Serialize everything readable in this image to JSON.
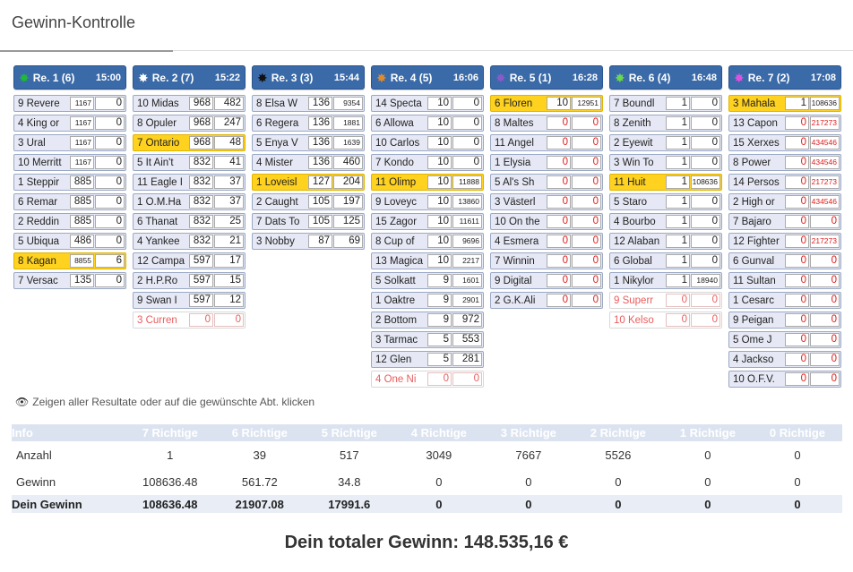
{
  "page": {
    "title": "Gewinn-Kontrolle"
  },
  "races": [
    {
      "label": "Re. 1 (6)",
      "time": "15:00",
      "burst_color": "#1fb83a",
      "runners": [
        {
          "name": "9 Revere",
          "v1": "1167",
          "v2": "0",
          "state": ""
        },
        {
          "name": "4 King or",
          "v1": "1167",
          "v2": "0",
          "state": ""
        },
        {
          "name": "3 Ural",
          "v1": "1167",
          "v2": "0",
          "state": ""
        },
        {
          "name": "10 Merritt",
          "v1": "1167",
          "v2": "0",
          "state": ""
        },
        {
          "name": "1 Steppir",
          "v1": "885",
          "v2": "0",
          "state": ""
        },
        {
          "name": "6 Remar",
          "v1": "885",
          "v2": "0",
          "state": ""
        },
        {
          "name": "2 Reddin",
          "v1": "885",
          "v2": "0",
          "state": ""
        },
        {
          "name": "5 Ubiqua",
          "v1": "486",
          "v2": "0",
          "state": ""
        },
        {
          "name": "8 Kagan",
          "v1": "8855",
          "v2": "6",
          "state": "win"
        },
        {
          "name": "7 Versac",
          "v1": "135",
          "v2": "0",
          "state": ""
        }
      ]
    },
    {
      "label": "Re. 2 (7)",
      "time": "15:22",
      "burst_color": "#ffffff",
      "runners": [
        {
          "name": "10 Midas",
          "v1": "968",
          "v2": "482",
          "state": ""
        },
        {
          "name": "8 Opuler",
          "v1": "968",
          "v2": "247",
          "state": ""
        },
        {
          "name": "7 Ontario",
          "v1": "968",
          "v2": "48",
          "state": "win"
        },
        {
          "name": "5 It Ain't",
          "v1": "832",
          "v2": "41",
          "state": ""
        },
        {
          "name": "11 Eagle I",
          "v1": "832",
          "v2": "37",
          "state": ""
        },
        {
          "name": "1 O.M.Ha",
          "v1": "832",
          "v2": "37",
          "state": ""
        },
        {
          "name": "6 Thanat",
          "v1": "832",
          "v2": "25",
          "state": ""
        },
        {
          "name": "4 Yankee",
          "v1": "832",
          "v2": "21",
          "state": ""
        },
        {
          "name": "12 Campa",
          "v1": "597",
          "v2": "17",
          "state": ""
        },
        {
          "name": "2 H.P.Ro",
          "v1": "597",
          "v2": "15",
          "state": ""
        },
        {
          "name": "9 Swan I",
          "v1": "597",
          "v2": "12",
          "state": ""
        },
        {
          "name": "3 Curren",
          "v1": "0",
          "v2": "0",
          "state": "scr"
        }
      ]
    },
    {
      "label": "Re. 3 (3)",
      "time": "15:44",
      "burst_color": "#111111",
      "runners": [
        {
          "name": "8 Elsa W",
          "v1": "136",
          "v2": "9354",
          "state": ""
        },
        {
          "name": "6 Regera",
          "v1": "136",
          "v2": "1881",
          "state": ""
        },
        {
          "name": "5 Enya V",
          "v1": "136",
          "v2": "1639",
          "state": ""
        },
        {
          "name": "4 Mister",
          "v1": "136",
          "v2": "460",
          "state": ""
        },
        {
          "name": "1 Loveisl",
          "v1": "127",
          "v2": "204",
          "state": "win"
        },
        {
          "name": "2 Caught",
          "v1": "105",
          "v2": "197",
          "state": ""
        },
        {
          "name": "7 Dats To",
          "v1": "105",
          "v2": "125",
          "state": ""
        },
        {
          "name": "3 Nobby",
          "v1": "87",
          "v2": "69",
          "state": ""
        }
      ]
    },
    {
      "label": "Re. 4 (5)",
      "time": "16:06",
      "burst_color": "#e08a2a",
      "runners": [
        {
          "name": "14 Specta",
          "v1": "10",
          "v2": "0",
          "state": ""
        },
        {
          "name": "6 Allowa",
          "v1": "10",
          "v2": "0",
          "state": ""
        },
        {
          "name": "10 Carlos",
          "v1": "10",
          "v2": "0",
          "state": ""
        },
        {
          "name": "7 Kondo",
          "v1": "10",
          "v2": "0",
          "state": ""
        },
        {
          "name": "11 Olimp",
          "v1": "10",
          "v2": "11888",
          "state": "win"
        },
        {
          "name": "9 Loveyc",
          "v1": "10",
          "v2": "13860",
          "state": ""
        },
        {
          "name": "15 Zagor",
          "v1": "10",
          "v2": "11611",
          "state": ""
        },
        {
          "name": "8 Cup of",
          "v1": "10",
          "v2": "9696",
          "state": ""
        },
        {
          "name": "13 Magica",
          "v1": "10",
          "v2": "2217",
          "state": ""
        },
        {
          "name": "5 Solkatt",
          "v1": "9",
          "v2": "1601",
          "state": ""
        },
        {
          "name": "1 Oaktre",
          "v1": "9",
          "v2": "2901",
          "state": ""
        },
        {
          "name": "2 Bottom",
          "v1": "9",
          "v2": "972",
          "state": ""
        },
        {
          "name": "3 Tarmac",
          "v1": "5",
          "v2": "553",
          "state": ""
        },
        {
          "name": "12 Glen",
          "v1": "5",
          "v2": "281",
          "state": ""
        },
        {
          "name": "4 One Ni",
          "v1": "0",
          "v2": "0",
          "state": "scr"
        }
      ]
    },
    {
      "label": "Re. 5 (1)",
      "time": "16:28",
      "burst_color": "#8a5ac8",
      "runners": [
        {
          "name": "6 Floren",
          "v1": "10",
          "v2": "12951",
          "state": "win"
        },
        {
          "name": "8 Maltes",
          "v1": "0",
          "v2": "0",
          "state": "",
          "red": true
        },
        {
          "name": "11 Angel",
          "v1": "0",
          "v2": "0",
          "state": "",
          "red": true
        },
        {
          "name": "1 Elysia",
          "v1": "0",
          "v2": "0",
          "state": "",
          "red": true
        },
        {
          "name": "5 Al's Sh",
          "v1": "0",
          "v2": "0",
          "state": "",
          "red": true
        },
        {
          "name": "3 Västerl",
          "v1": "0",
          "v2": "0",
          "state": "",
          "red": true
        },
        {
          "name": "10 On the",
          "v1": "0",
          "v2": "0",
          "state": "",
          "red": true
        },
        {
          "name": "4 Esmera",
          "v1": "0",
          "v2": "0",
          "state": "",
          "red": true
        },
        {
          "name": "7 Winnin",
          "v1": "0",
          "v2": "0",
          "state": "",
          "red": true
        },
        {
          "name": "9 Digital",
          "v1": "0",
          "v2": "0",
          "state": "",
          "red": true
        },
        {
          "name": "2 G.K.Ali",
          "v1": "0",
          "v2": "0",
          "state": "",
          "red": true
        }
      ]
    },
    {
      "label": "Re. 6 (4)",
      "time": "16:48",
      "burst_color": "#6ad84a",
      "runners": [
        {
          "name": "7 Boundl",
          "v1": "1",
          "v2": "0",
          "state": ""
        },
        {
          "name": "8 Zenith",
          "v1": "1",
          "v2": "0",
          "state": ""
        },
        {
          "name": "2 Eyewit",
          "v1": "1",
          "v2": "0",
          "state": ""
        },
        {
          "name": "3 Win To",
          "v1": "1",
          "v2": "0",
          "state": ""
        },
        {
          "name": "11 Huit",
          "v1": "1",
          "v2": "108636",
          "state": "win"
        },
        {
          "name": "5 Staro",
          "v1": "1",
          "v2": "0",
          "state": ""
        },
        {
          "name": "4 Bourbo",
          "v1": "1",
          "v2": "0",
          "state": ""
        },
        {
          "name": "12 Alaban",
          "v1": "1",
          "v2": "0",
          "state": ""
        },
        {
          "name": "6 Global",
          "v1": "1",
          "v2": "0",
          "state": ""
        },
        {
          "name": "1 Nikylor",
          "v1": "1",
          "v2": "18940",
          "state": ""
        },
        {
          "name": "9 Superr",
          "v1": "0",
          "v2": "0",
          "state": "scr"
        },
        {
          "name": "10 Kelso",
          "v1": "0",
          "v2": "0",
          "state": "scr"
        }
      ]
    },
    {
      "label": "Re. 7 (2)",
      "time": "17:08",
      "burst_color": "#e050e0",
      "runners": [
        {
          "name": "3 Mahala",
          "v1": "1",
          "v2": "108636",
          "state": "win"
        },
        {
          "name": "13 Capon",
          "v1": "0",
          "v2": "217273",
          "state": "",
          "red": true
        },
        {
          "name": "15 Xerxes",
          "v1": "0",
          "v2": "434546",
          "state": "",
          "red": true
        },
        {
          "name": "8 Power",
          "v1": "0",
          "v2": "434546",
          "state": "",
          "red": true
        },
        {
          "name": "14 Persos",
          "v1": "0",
          "v2": "217273",
          "state": "",
          "red": true
        },
        {
          "name": "2 High or",
          "v1": "0",
          "v2": "434546",
          "state": "",
          "red": true
        },
        {
          "name": "7 Bajaro",
          "v1": "0",
          "v2": "0",
          "state": "",
          "red": true
        },
        {
          "name": "12 Fighter",
          "v1": "0",
          "v2": "217273",
          "state": "",
          "red": true
        },
        {
          "name": "6 Gunval",
          "v1": "0",
          "v2": "0",
          "state": "",
          "red": true
        },
        {
          "name": "11 Sultan",
          "v1": "0",
          "v2": "0",
          "state": "",
          "red": true
        },
        {
          "name": "1 Cesarc",
          "v1": "0",
          "v2": "0",
          "state": "",
          "red": true
        },
        {
          "name": "9 Peigan",
          "v1": "0",
          "v2": "0",
          "state": "",
          "red": true
        },
        {
          "name": "5 Ome J",
          "v1": "0",
          "v2": "0",
          "state": "",
          "red": true
        },
        {
          "name": "4 Jackso",
          "v1": "0",
          "v2": "0",
          "state": "",
          "red": true
        },
        {
          "name": "10 O.F.V.",
          "v1": "0",
          "v2": "0",
          "state": "",
          "red": true
        }
      ]
    }
  ],
  "hint": "Zeigen aller Resultate oder auf die gewünschte Abt. klicken",
  "results": {
    "headers": [
      "Info",
      "7 Richtige",
      "6 Richtige",
      "5 Richtige",
      "4 Richtige",
      "3 Richtige",
      "2 Richtige",
      "1 Richtige",
      "0 Richtige"
    ],
    "rows": [
      [
        "Anzahl",
        "1",
        "39",
        "517",
        "3049",
        "7667",
        "5526",
        "0",
        "0"
      ],
      [
        "Gewinn",
        "108636.48",
        "561.72",
        "34.8",
        "0",
        "0",
        "0",
        "0",
        "0"
      ]
    ],
    "total": [
      "Dein Gewinn",
      "108636.48",
      "21907.08",
      "17991.6",
      "0",
      "0",
      "0",
      "0",
      "0"
    ]
  },
  "grand_total": "Dein totaler Gewinn: 148.535,16 €"
}
